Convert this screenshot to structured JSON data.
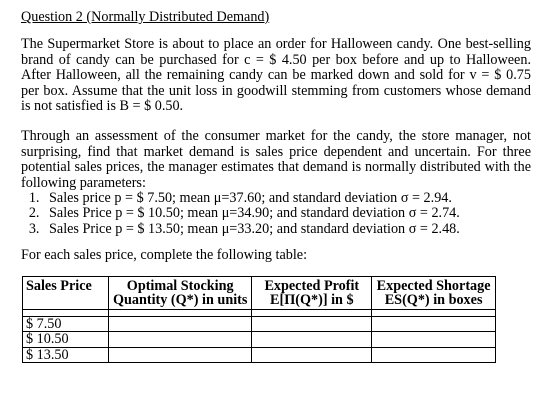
{
  "question_title": "Question 2 (Normally Distributed Demand)",
  "paragraph1": "The Supermarket Store is about to place an order for Halloween candy.  One best-selling brand of candy can be purchased for c = $ 4.50 per box before and up to Halloween.  After Halloween, all the remaining candy can be marked down and sold for v = $ 0.75 per box.  Assume that the unit loss in goodwill stemming from customers whose demand is not satisfied is B = $ 0.50.",
  "paragraph2": "Through an assessment of the consumer market for the candy, the store manager, not surprising, find that market demand is sales price dependent and uncertain.  For three potential sales prices, the manager estimates that demand is normally distributed with the following parameters:",
  "list_items": [
    "Sales price p = $ 7.50; mean μ=37.60; and standard deviation σ = 2.94.",
    "Sales Price p = $ 10.50; mean μ=34.90; and standard deviation σ = 2.74.",
    "Sales Price p = $ 13.50; mean μ=33.20; and standard deviation σ = 2.48."
  ],
  "instruction": "For each sales price, complete the following table:",
  "table": {
    "headers": [
      "Sales Price",
      "Optimal Stocking Quantity (Q*) in units",
      "Expected Profit E[Π(Q*)] in $",
      "Expected Shortage ES(Q*) in boxes"
    ],
    "rows": [
      [
        "$ 7.50",
        "",
        "",
        ""
      ],
      [
        "$ 10.50",
        "",
        "",
        ""
      ],
      [
        "$ 13.50",
        "",
        "",
        ""
      ]
    ]
  }
}
